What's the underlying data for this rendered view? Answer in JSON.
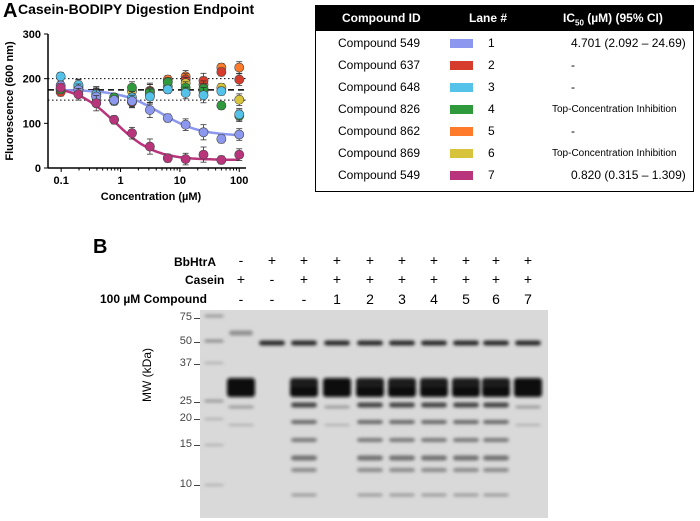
{
  "panel_a": {
    "letter": "A",
    "title": "Casein-BODIPY Digestion Endpoint"
  },
  "chart_data": {
    "type": "scatter",
    "title": "Casein-BODIPY Digestion Endpoint",
    "xlabel": "Concentration (µM)",
    "ylabel": "Fluorescence (600 nm)",
    "xscale": "log",
    "xlim": [
      0.1,
      100
    ],
    "ylim": [
      0,
      300
    ],
    "x_ticks": [
      "0.1",
      "1",
      "10",
      "100"
    ],
    "y_ticks": [
      "0",
      "100",
      "200",
      "300"
    ],
    "reference_lines": [
      200,
      175,
      152
    ],
    "x": [
      0.098,
      0.195,
      0.39,
      0.78,
      1.56,
      3.125,
      6.25,
      12.5,
      25,
      50,
      100
    ],
    "series": [
      {
        "color": "#ff7b2c",
        "values": [
          175,
          182,
          160,
          150,
          148,
          173,
          198,
          205,
          187,
          225,
          225
        ]
      },
      {
        "color": "#d53c2c",
        "values": [
          170,
          180,
          162,
          152,
          148,
          170,
          193,
          198,
          195,
          215,
          198
        ]
      },
      {
        "color": "#d8c43c",
        "values": [
          178,
          185,
          160,
          158,
          172,
          163,
          182,
          190,
          172,
          180,
          153
        ]
      },
      {
        "color": "#2f9a3c",
        "values": [
          176,
          178,
          165,
          158,
          180,
          170,
          192,
          180,
          178,
          140,
          117
        ]
      },
      {
        "color": "#55c2ea",
        "values": [
          205,
          186,
          165,
          150,
          158,
          160,
          176,
          168,
          163,
          172,
          120
        ]
      },
      {
        "color": "#8c97ee",
        "values": [
          185,
          175,
          160,
          152,
          150,
          130,
          112,
          97,
          80,
          65,
          75
        ]
      },
      {
        "color": "#b8347b",
        "values": [
          180,
          165,
          145,
          108,
          78,
          48,
          22,
          20,
          30,
          18,
          30
        ]
      }
    ],
    "fit_curves": [
      {
        "color": "#8c97ee",
        "top": 175,
        "bottom": 72,
        "ic50": 4.701
      },
      {
        "color": "#b8347b",
        "top": 185,
        "bottom": 18,
        "ic50": 0.82
      }
    ]
  },
  "table": {
    "headers": {
      "compound": "Compound ID",
      "lane": "Lane #",
      "ic50_prefix": "IC",
      "ic50_sub": "50",
      "ic50_suffix": " (µM) (95% CI)"
    },
    "rows": [
      {
        "compound": "Compound 549",
        "color": "#8c97ee",
        "lane": "1",
        "ic50": "4.701 (2.092 – 24.69)"
      },
      {
        "compound": "Compound 637",
        "color": "#d53c2c",
        "lane": "2",
        "ic50": "-"
      },
      {
        "compound": "Compound 648",
        "color": "#55c2ea",
        "lane": "3",
        "ic50": "-"
      },
      {
        "compound": "Compound 826",
        "color": "#2f9a3c",
        "lane": "4",
        "ic50": "Top-Concentration Inhibition"
      },
      {
        "compound": "Compound 862",
        "color": "#ff7b2c",
        "lane": "5",
        "ic50": "-"
      },
      {
        "compound": "Compound 869",
        "color": "#d8c43c",
        "lane": "6",
        "ic50": "Top-Concentration Inhibition"
      },
      {
        "compound": "Compound 549",
        "color": "#b8347b",
        "lane": "7",
        "ic50": "0.820 (0.315 – 1.309)"
      }
    ]
  },
  "panel_b": {
    "letter": "B",
    "row_labels": {
      "bbhtra": "BbHtrA",
      "casein": "Casein",
      "compound": "100 µM Compound"
    },
    "bbhtra_signs": [
      "-",
      "+",
      "+",
      "+",
      "+",
      "+",
      "+",
      "+",
      "+",
      "+"
    ],
    "casein_signs": [
      "+",
      "-",
      "+",
      "+",
      "+",
      "+",
      "+",
      "+",
      "+",
      "+"
    ],
    "compound_signs": [
      "-",
      "-",
      "-",
      "1",
      "2",
      "3",
      "4",
      "5",
      "6",
      "7"
    ],
    "mw_label": "MW (kDa)",
    "mw_markers": [
      "75",
      "50",
      "37",
      "25",
      "20",
      "15",
      "10"
    ]
  }
}
